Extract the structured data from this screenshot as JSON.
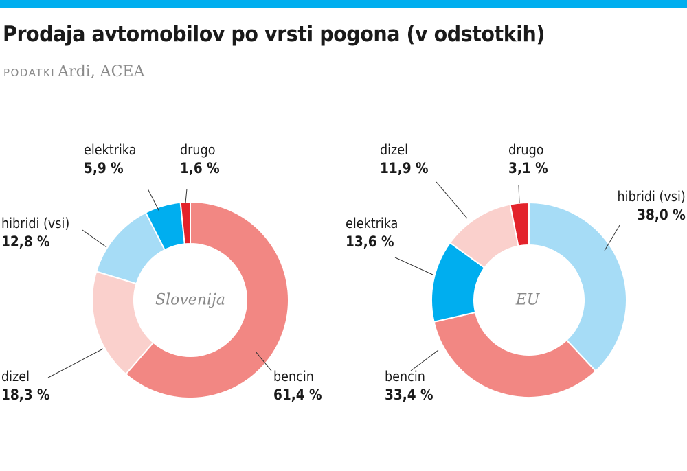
{
  "title": "Prodaja avtomobilov po vrsti pogona (v odstotkih)",
  "source_label": "PODATKI",
  "source": "Ardi, ACEA",
  "colors": {
    "top_bar": "#00aeef",
    "bencin": "#f28783",
    "dizel": "#fad0cc",
    "hibridi": "#a6dcf6",
    "elektrika": "#00aeef",
    "drugo": "#e3232b"
  },
  "chart_data": [
    {
      "type": "pie",
      "variant": "donut",
      "center_label": "Slovenija",
      "slices": [
        {
          "label": "bencin",
          "value": 61.4,
          "text": "61,4 %",
          "color": "#f28783"
        },
        {
          "label": "dizel",
          "value": 18.3,
          "text": "18,3 %",
          "color": "#fad0cc"
        },
        {
          "label": "hibridi (vsi)",
          "value": 12.8,
          "text": "12,8 %",
          "color": "#a6dcf6"
        },
        {
          "label": "elektrika",
          "value": 5.9,
          "text": "5,9 %",
          "color": "#00aeef"
        },
        {
          "label": "drugo",
          "value": 1.6,
          "text": "1,6 %",
          "color": "#e3232b"
        }
      ]
    },
    {
      "type": "pie",
      "variant": "donut",
      "center_label": "EU",
      "slices": [
        {
          "label": "hibridi (vsi)",
          "value": 38.0,
          "text": "38,0 %",
          "color": "#a6dcf6"
        },
        {
          "label": "bencin",
          "value": 33.4,
          "text": "33,4 %",
          "color": "#f28783"
        },
        {
          "label": "elektrika",
          "value": 13.6,
          "text": "13,6 %",
          "color": "#00aeef"
        },
        {
          "label": "dizel",
          "value": 11.9,
          "text": "11,9 %",
          "color": "#fad0cc"
        },
        {
          "label": "drugo",
          "value": 3.1,
          "text": "3,1 %",
          "color": "#e3232b"
        }
      ]
    }
  ]
}
